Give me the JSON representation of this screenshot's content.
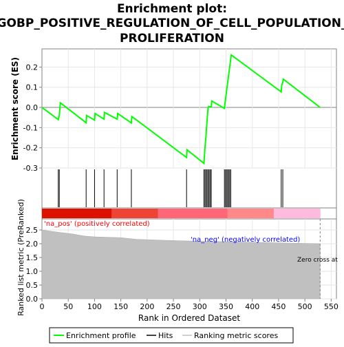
{
  "chart_data": {
    "type": "line",
    "title_lines": [
      "Enrichment plot:",
      "GOBP_POSITIVE_REGULATION_OF_CELL_POPULATION_",
      "PROLIFERATION"
    ],
    "xlabel": "Rank in Ordered Dataset",
    "xlim": [
      0,
      560
    ],
    "x_ticks": [
      0,
      50,
      100,
      150,
      200,
      250,
      300,
      350,
      400,
      450,
      500,
      550
    ],
    "es_panel": {
      "ylabel": "Enrichment score (ES)",
      "ylim": [
        -0.3,
        0.29
      ],
      "y_ticks": [
        "0.2",
        "0.1",
        "0.0",
        "-0.1",
        "-0.2",
        "-0.3"
      ],
      "y_tick_values": [
        0.2,
        0.1,
        0.0,
        -0.1,
        -0.2,
        -0.3
      ],
      "series": [
        {
          "name": "Enrichment profile",
          "color": "#00ff00",
          "x": [
            0,
            31,
            33,
            35,
            84,
            85,
            100,
            101,
            118,
            119,
            143,
            144,
            170,
            171,
            275,
            276,
            308,
            309,
            310,
            311,
            312,
            313,
            314,
            315,
            316,
            317,
            318,
            320,
            322,
            323,
            347,
            348,
            349,
            350,
            351,
            352,
            353,
            354,
            355,
            356,
            357,
            358,
            359,
            360,
            455,
            456,
            458,
            459,
            529
          ],
          "y": [
            0.0,
            -0.06,
            -0.04,
            0.023,
            -0.076,
            -0.04,
            -0.063,
            -0.03,
            -0.058,
            -0.025,
            -0.058,
            -0.03,
            -0.077,
            -0.045,
            -0.248,
            -0.21,
            -0.277,
            -0.24,
            -0.2,
            -0.17,
            -0.14,
            -0.1,
            -0.065,
            -0.03,
            0.0,
            0.005,
            0.004,
            0.003,
            0.002,
            0.032,
            -0.005,
            0.02,
            0.04,
            0.06,
            0.08,
            0.1,
            0.12,
            0.14,
            0.16,
            0.18,
            0.2,
            0.22,
            0.24,
            0.26,
            0.077,
            0.11,
            0.125,
            0.14,
            0.0
          ]
        }
      ],
      "hits": [
        31,
        33,
        84,
        100,
        118,
        143,
        170,
        275,
        308,
        310,
        312,
        314,
        316,
        318,
        320,
        322,
        347,
        349,
        351,
        353,
        355,
        357,
        359,
        455,
        458
      ]
    },
    "metric_panel": {
      "ylabel": "Ranked list metric (PreRanked)",
      "ylim": [
        0,
        2.9
      ],
      "y_ticks": [
        "0.0",
        "0.5",
        "1.0",
        "1.5",
        "2.0",
        "2.5"
      ],
      "y_tick_values": [
        0.0,
        0.5,
        1.0,
        1.5,
        2.0,
        2.5
      ],
      "fill_color": "#c0c0c0",
      "x": [
        0,
        30,
        60,
        80,
        100,
        150,
        180,
        240,
        280,
        330,
        380,
        430,
        480,
        529
      ],
      "y": [
        2.5,
        2.42,
        2.35,
        2.28,
        2.25,
        2.22,
        2.16,
        2.12,
        2.1,
        2.08,
        2.06,
        2.04,
        2.02,
        2.0
      ],
      "zero_cross_x": 529,
      "labels": {
        "pos": "'na_pos' (positively correlated)",
        "neg": "'na_neg' (negatively correlated)",
        "zero_cross": "Zero cross at"
      },
      "label_colors": {
        "pos": "#ff0000",
        "neg": "#0000ff",
        "zero_cross": "#000000"
      }
    },
    "heat_colors": [
      "#dd1100",
      "#ee4433",
      "#ff6677",
      "#ff8888",
      "#ffbbdd"
    ],
    "legend": {
      "placement": "bottom",
      "items": [
        {
          "label": "Enrichment profile",
          "color": "#00ff00"
        },
        {
          "label": "Hits",
          "color": "#000000"
        },
        {
          "label": "Ranking metric scores",
          "color": "#c0c0c0"
        }
      ]
    }
  }
}
